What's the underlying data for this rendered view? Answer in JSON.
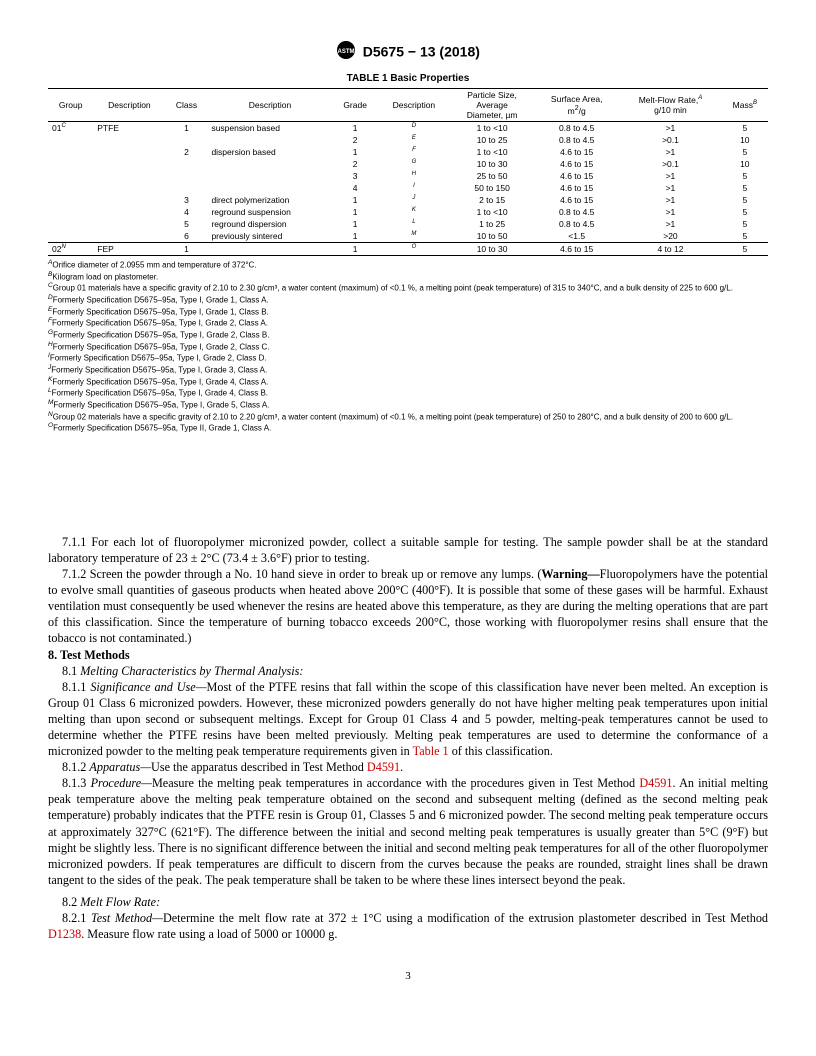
{
  "header": {
    "docnum": "D5675 − 13 (2018)"
  },
  "table": {
    "title": "TABLE 1 Basic Properties",
    "columns": [
      "Group",
      "Description",
      "Class",
      "Description",
      "Grade",
      "Description",
      "Particle Size, Average Diameter, µm",
      "Surface Area, m²/g",
      "Melt-Flow Rate,ᴬ g/10 min",
      "Massᴮ"
    ],
    "rows": [
      {
        "sep": "top",
        "group": "01",
        "gsup": "C",
        "desc1": "PTFE",
        "class": "1",
        "desc2": "suspension based",
        "grade": "1",
        "grsup": "D",
        "particle": "1 to <10",
        "surface": "0.8 to 4.5",
        "melt": ">1",
        "mass": "5"
      },
      {
        "group": "",
        "desc1": "",
        "class": "",
        "desc2": "",
        "grade": "2",
        "grsup": "E",
        "particle": "10 to 25",
        "surface": "0.8 to 4.5",
        "melt": ">0.1",
        "mass": "10"
      },
      {
        "group": "",
        "desc1": "",
        "class": "2",
        "desc2": "dispersion based",
        "grade": "1",
        "grsup": "F",
        "particle": "1 to <10",
        "surface": "4.6 to 15",
        "melt": ">1",
        "mass": "5"
      },
      {
        "group": "",
        "desc1": "",
        "class": "",
        "desc2": "",
        "grade": "2",
        "grsup": "G",
        "particle": "10 to 30",
        "surface": "4.6 to 15",
        "melt": ">0.1",
        "mass": "10"
      },
      {
        "group": "",
        "desc1": "",
        "class": "",
        "desc2": "",
        "grade": "3",
        "grsup": "H",
        "particle": "25 to 50",
        "surface": "4.6 to 15",
        "melt": ">1",
        "mass": "5"
      },
      {
        "group": "",
        "desc1": "",
        "class": "",
        "desc2": "",
        "grade": "4",
        "grsup": "I",
        "particle": "50 to 150",
        "surface": "4.6 to 15",
        "melt": ">1",
        "mass": "5"
      },
      {
        "group": "",
        "desc1": "",
        "class": "3",
        "desc2": "direct polymerization",
        "grade": "1",
        "grsup": "J",
        "particle": "2 to 15",
        "surface": "4.6 to 15",
        "melt": ">1",
        "mass": "5"
      },
      {
        "group": "",
        "desc1": "",
        "class": "4",
        "desc2": "reground suspension",
        "grade": "1",
        "grsup": "K",
        "particle": "1 to <10",
        "surface": "0.8 to 4.5",
        "melt": ">1",
        "mass": "5"
      },
      {
        "group": "",
        "desc1": "",
        "class": "5",
        "desc2": "reground dispersion",
        "grade": "1",
        "grsup": "L",
        "particle": "1 to 25",
        "surface": "0.8 to 4.5",
        "melt": ">1",
        "mass": "5"
      },
      {
        "group": "",
        "desc1": "",
        "class": "6",
        "desc2": "previously sintered",
        "grade": "1",
        "grsup": "M",
        "particle": "10 to 50",
        "surface": "<1.5",
        "melt": ">20",
        "mass": "5"
      },
      {
        "sep": "both",
        "group": "02",
        "gsup": "N",
        "desc1": "FEP",
        "class": "1",
        "desc2": "",
        "grade": "1",
        "grsup": "O",
        "particle": "10 to 30",
        "surface": "4.6 to 15",
        "melt": "4 to 12",
        "mass": "5"
      }
    ]
  },
  "footnotes": [
    {
      "lbl": "A",
      "text": "Orifice diameter of 2.0955 mm and temperature of 372°C."
    },
    {
      "lbl": "B",
      "text": "Kilogram load on plastometer."
    },
    {
      "lbl": "C",
      "text": "Group 01 materials have a specific gravity of 2.10 to 2.30 g/cm³, a water content (maximum) of <0.1 %, a melting point (peak temperature) of 315 to 340°C, and a bulk density of 225 to 600 g/L."
    },
    {
      "lbl": "D",
      "text": "Formerly Specification D5675–95a, Type I, Grade 1, Class A."
    },
    {
      "lbl": "E",
      "text": "Formerly Specification D5675–95a, Type I, Grade 1, Class B."
    },
    {
      "lbl": "F",
      "text": "Formerly Specification D5675–95a, Type I, Grade 2, Class A."
    },
    {
      "lbl": "G",
      "text": "Formerly Specification D5675–95a, Type I, Grade 2, Class B."
    },
    {
      "lbl": "H",
      "text": "Formerly Specification D5675–95a, Type I, Grade 2, Class C."
    },
    {
      "lbl": "I",
      "text": "Formerly Specification D5675–95a, Type I, Grade 2, Class D."
    },
    {
      "lbl": "J",
      "text": "Formerly Specification D5675–95a, Type I, Grade 3, Class A."
    },
    {
      "lbl": "K",
      "text": "Formerly Specification D5675–95a, Type I, Grade 4, Class A."
    },
    {
      "lbl": "L",
      "text": "Formerly Specification D5675–95a, Type I, Grade 4, Class B."
    },
    {
      "lbl": "M",
      "text": "Formerly Specification D5675–95a, Type I, Grade 5, Class A."
    },
    {
      "lbl": "N",
      "text": "Group 02 materials have a specific gravity of 2.10 to 2.20 g/cm³, a water content (maximum) of <0.1 %, a melting point (peak temperature) of 250 to 280°C, and a bulk density of 200 to 600 g/L."
    },
    {
      "lbl": "O",
      "text": "Formerly Specification D5675–95a, Type II, Grade 1, Class A."
    }
  ],
  "body": {
    "p711": "7.1.1 For each lot of fluoropolymer micronized powder, collect a suitable sample for testing. The sample powder shall be at the standard laboratory temperature of 23 ± 2°C (73.4 ± 3.6°F) prior to testing.",
    "p712a": "7.1.2 Screen the powder through a No. 10 hand sieve in order to break up or remove any lumps. (",
    "p712warn": "Warning—",
    "p712b": "Fluoropolymers have the potential to evolve small quantities of gaseous products when heated above 200°C (400°F). It is possible that some of these gases will be harmful. Exhaust ventilation must consequently be used whenever the resins are heated above this temperature, as they are during the melting operations that are part of this classification. Since the temperature of burning tobacco exceeds 200°C, those working with fluoropolymer resins shall ensure that the tobacco is not contaminated.)",
    "s8": "8.  Test Methods",
    "p81": "8.1 ",
    "p81i": "Melting Characteristics by Thermal Analysis:",
    "p811a": "8.1.1 ",
    "p811i": "Significance and Use—",
    "p811b": "Most of the PTFE resins that fall within the scope of this classification have never been melted. An exception is Group 01 Class 6 micronized powders. However, these micronized powders generally do not have higher melting peak temperatures upon initial melting than upon second or subsequent meltings. Except for Group 01 Class 4 and 5 powder, melting-peak temperatures cannot be used to determine whether the PTFE resins have been melted previously. Melting peak temperatures are used to determine the conformance of a micronized powder to the melting peak temperature requirements given in ",
    "p811link": "Table 1",
    "p811c": " of this classification.",
    "p812a": "8.1.2 ",
    "p812i": "Apparatus—",
    "p812b": "Use the apparatus described in Test Method ",
    "p812link": "D4591",
    "p812c": ".",
    "p813a": "8.1.3 ",
    "p813i": "Procedure—",
    "p813b": "Measure the melting peak temperatures in accordance with the procedures given in Test Method ",
    "p813link": "D4591",
    "p813c": ". An initial melting peak temperature above the melting peak temperature obtained on the second and subsequent melting (defined as the second melting peak temperature) probably indicates that the PTFE resin is Group 01, Classes 5 and 6 micronized powder. The second melting peak temperature occurs at approximately 327°C (621°F). The difference between the initial and second melting peak temperatures is usually greater than 5°C (9°F) but might be slightly less. There is no significant difference between the initial and second melting peak temperatures for all of the other fluoropolymer micronized powders. If peak temperatures are difficult to discern from the curves because the peaks are rounded, straight lines shall be drawn tangent to the sides of the peak. The peak temperature shall be taken to be where these lines intersect beyond the peak.",
    "p82": "8.2 ",
    "p82i": "Melt Flow Rate:",
    "p821a": "8.2.1 ",
    "p821i": "Test Method—",
    "p821b": "Determine the melt flow rate at 372 ± 1°C using a modification of the extrusion plastometer described in Test Method ",
    "p821link": "D1238",
    "p821c": ". Measure flow rate using a load of 5000 or 10000 g."
  },
  "pagenum": "3"
}
